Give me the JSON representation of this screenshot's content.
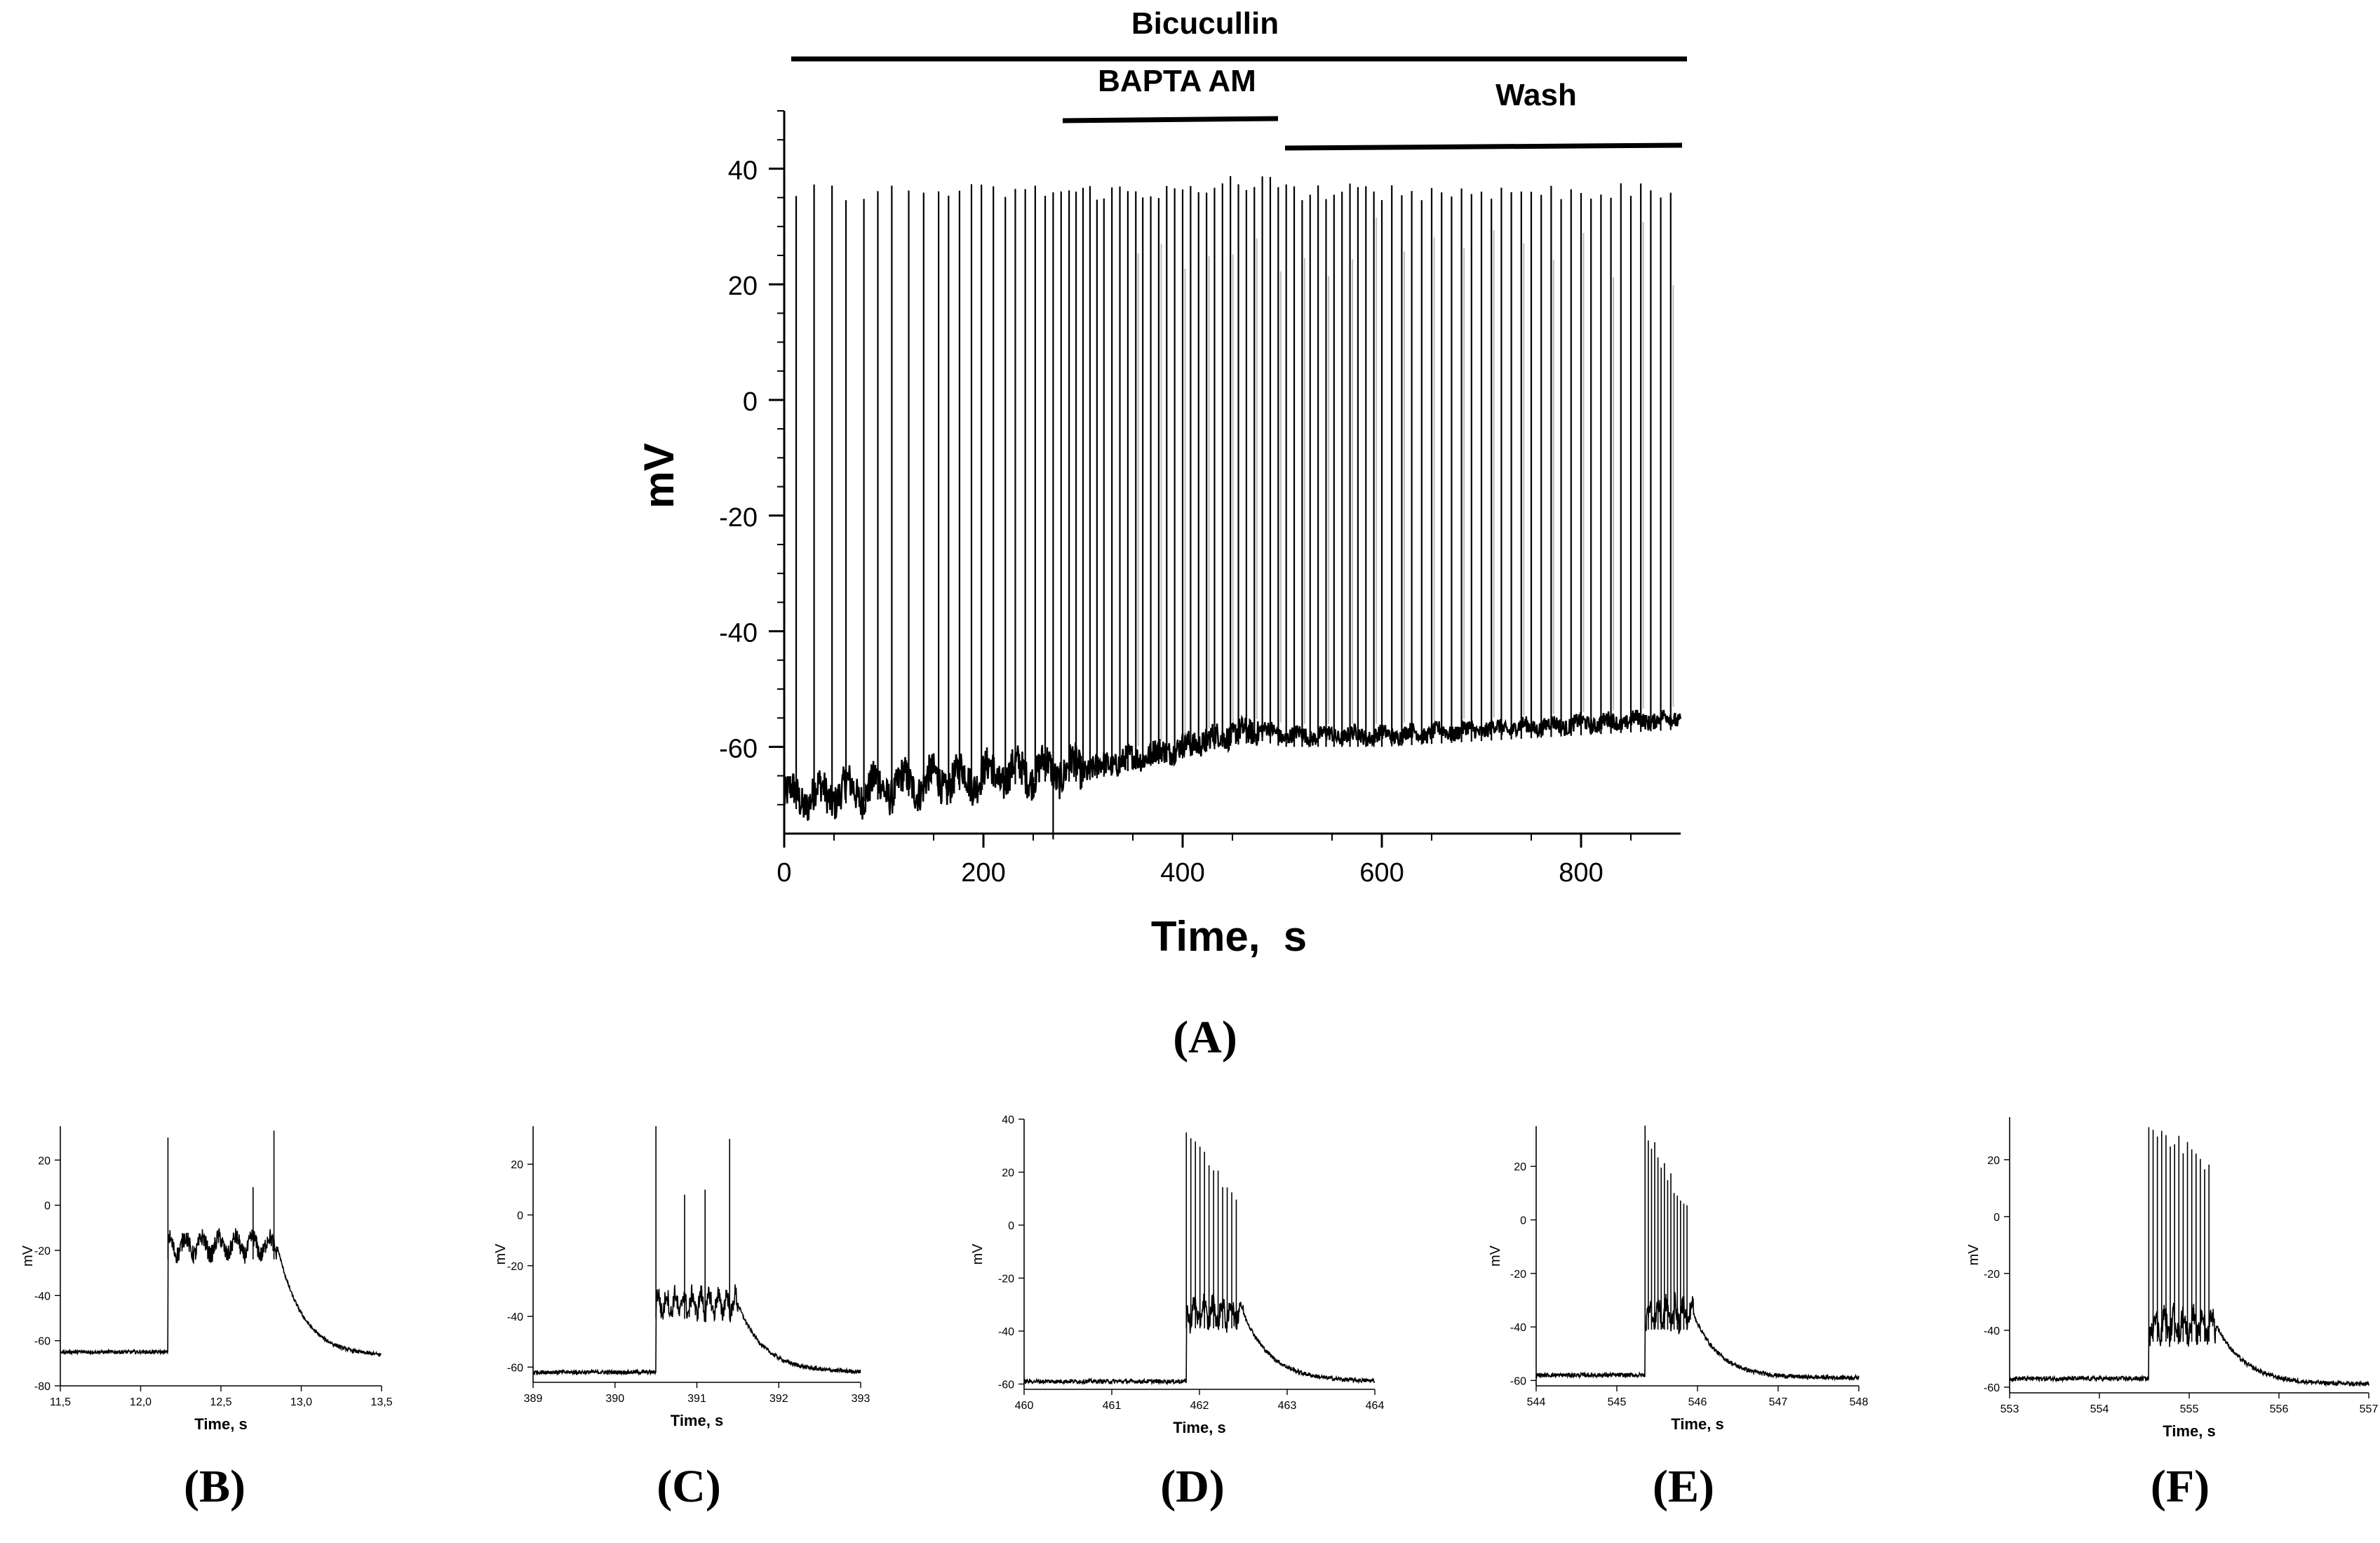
{
  "figure": {
    "panels": [
      {
        "id": "A",
        "caption": "(A)",
        "xlabel": "Time,  s",
        "ylabel": "mV",
        "x_ticks": [
          "0",
          "200",
          "400",
          "600",
          "800"
        ],
        "y_ticks": [
          "40",
          "20",
          "0",
          "-20",
          "-40",
          "-60"
        ],
        "conditions": [
          {
            "label": "Bicucullin",
            "start": 10,
            "end": 900
          },
          {
            "label": "BAPTA AM",
            "start": 280,
            "end": 495
          },
          {
            "label": "Wash",
            "start": 500,
            "end": 900
          }
        ]
      },
      {
        "id": "B",
        "caption": "(B)",
        "xlabel": "Time,  s",
        "ylabel": "mV",
        "x_ticks": [
          "11,5",
          "12,0",
          "12,5",
          "13,0",
          "13,5"
        ],
        "y_ticks": [
          "20",
          "0",
          "-20",
          "-40",
          "-60",
          "-80"
        ]
      },
      {
        "id": "C",
        "caption": "(C)",
        "xlabel": "Time, s",
        "ylabel": "mV",
        "x_ticks": [
          "389",
          "390",
          "391",
          "392",
          "393"
        ],
        "y_ticks": [
          "20",
          "0",
          "-20",
          "-40",
          "-60"
        ]
      },
      {
        "id": "D",
        "caption": "(D)",
        "xlabel": "Time, s",
        "ylabel": "mV",
        "x_ticks": [
          "460",
          "461",
          "462",
          "463",
          "464"
        ],
        "y_ticks": [
          "40",
          "20",
          "0",
          "-20",
          "-40",
          "-60"
        ]
      },
      {
        "id": "E",
        "caption": "(E)",
        "xlabel": "Time,  s",
        "ylabel": "mV",
        "x_ticks": [
          "544",
          "545",
          "546",
          "547",
          "548"
        ],
        "y_ticks": [
          "20",
          "0",
          "-20",
          "-40",
          "-60"
        ]
      },
      {
        "id": "F",
        "caption": "(F)",
        "xlabel": "Time,  s",
        "ylabel": "mV",
        "x_ticks": [
          "553",
          "554",
          "555",
          "556",
          "557"
        ],
        "y_ticks": [
          "20",
          "0",
          "-20",
          "-40",
          "-60"
        ]
      }
    ]
  },
  "chart_data": [
    {
      "panel": "A",
      "type": "line",
      "title": "",
      "xlabel": "Time,  s",
      "ylabel": "mV",
      "xlim": [
        0,
        900
      ],
      "ylim": [
        -75,
        50
      ],
      "annotations": [
        "Bicucullin",
        "BAPTA AM",
        "Wash"
      ],
      "series": [
        {
          "baseline": {
            "x": [
              0,
              100,
              200,
              260,
              300,
              350,
              400,
              440,
              480,
              500,
              600,
              700,
              800,
              900
            ],
            "y": [
              -69,
              -67,
              -65,
              -64,
              -64,
              -62,
              -60,
              -58,
              -57,
              -58,
              -58,
              -57,
              -56,
              -55
            ]
          },
          "spike_times": [
            12,
            30,
            48,
            62,
            80,
            94,
            108,
            125,
            140,
            155,
            165,
            176,
            188,
            198,
            210,
            222,
            232,
            242,
            252,
            262,
            270,
            278,
            286,
            293,
            300,
            307,
            314,
            321,
            329,
            337,
            345,
            353,
            360,
            368,
            376,
            384,
            392,
            400,
            408,
            416,
            424,
            432,
            440,
            448,
            456,
            464,
            472,
            480,
            488,
            496,
            504,
            512,
            520,
            528,
            536,
            544,
            552,
            560,
            568,
            576,
            584,
            592,
            600,
            610,
            620,
            630,
            640,
            650,
            660,
            670,
            680,
            690,
            700,
            710,
            720,
            730,
            740,
            750,
            760,
            770,
            780,
            790,
            800,
            810,
            820,
            830,
            840,
            850,
            860,
            870,
            880,
            890
          ],
          "spike_peak": 36,
          "downward_deflection": {
            "x": 270,
            "y": -76
          }
        }
      ]
    },
    {
      "panel": "B",
      "type": "line",
      "xlim": [
        11.5,
        13.5
      ],
      "ylim": [
        -80,
        35
      ],
      "series": [
        {
          "baseline": -65,
          "burst_start": 12.17,
          "burst_end": 12.85,
          "plateau": -18,
          "spike_times": [
            12.17,
            12.7,
            12.83
          ],
          "spike_peaks": [
            30,
            8,
            33
          ],
          "end_value": -67
        }
      ]
    },
    {
      "panel": "C",
      "type": "line",
      "xlim": [
        389,
        393
      ],
      "ylim": [
        -66,
        35
      ],
      "series": [
        {
          "baseline": -62,
          "burst_start": 390.5,
          "burst_end": 391.5,
          "plateau": -35,
          "spike_times": [
            390.5,
            390.85,
            391.1,
            391.4
          ],
          "spike_peaks": [
            35,
            8,
            10,
            30
          ],
          "end_value": -62
        }
      ]
    },
    {
      "panel": "D",
      "type": "line",
      "xlim": [
        460,
        464
      ],
      "ylim": [
        -62,
        40
      ],
      "series": [
        {
          "baseline": -59,
          "burst_start": 461.85,
          "burst_end": 462.5,
          "plateau": -33,
          "spike_count": 12,
          "first_peak": 36,
          "last_peak": 10,
          "end_value": -59
        }
      ]
    },
    {
      "panel": "E",
      "type": "line",
      "xlim": [
        544,
        548
      ],
      "ylim": [
        -62,
        35
      ],
      "series": [
        {
          "baseline": -58,
          "burst_start": 545.35,
          "burst_end": 545.95,
          "plateau": -35,
          "spike_count": 14,
          "first_peak": 34,
          "last_peak": 3,
          "end_value": -59
        }
      ]
    },
    {
      "panel": "F",
      "type": "line",
      "xlim": [
        553,
        557
      ],
      "ylim": [
        -62,
        35
      ],
      "series": [
        {
          "baseline": -57,
          "burst_start": 554.55,
          "burst_end": 555.3,
          "plateau": -38,
          "spike_count": 15,
          "first_peak": 33,
          "last_peak": 18,
          "end_value": -59
        }
      ]
    }
  ]
}
